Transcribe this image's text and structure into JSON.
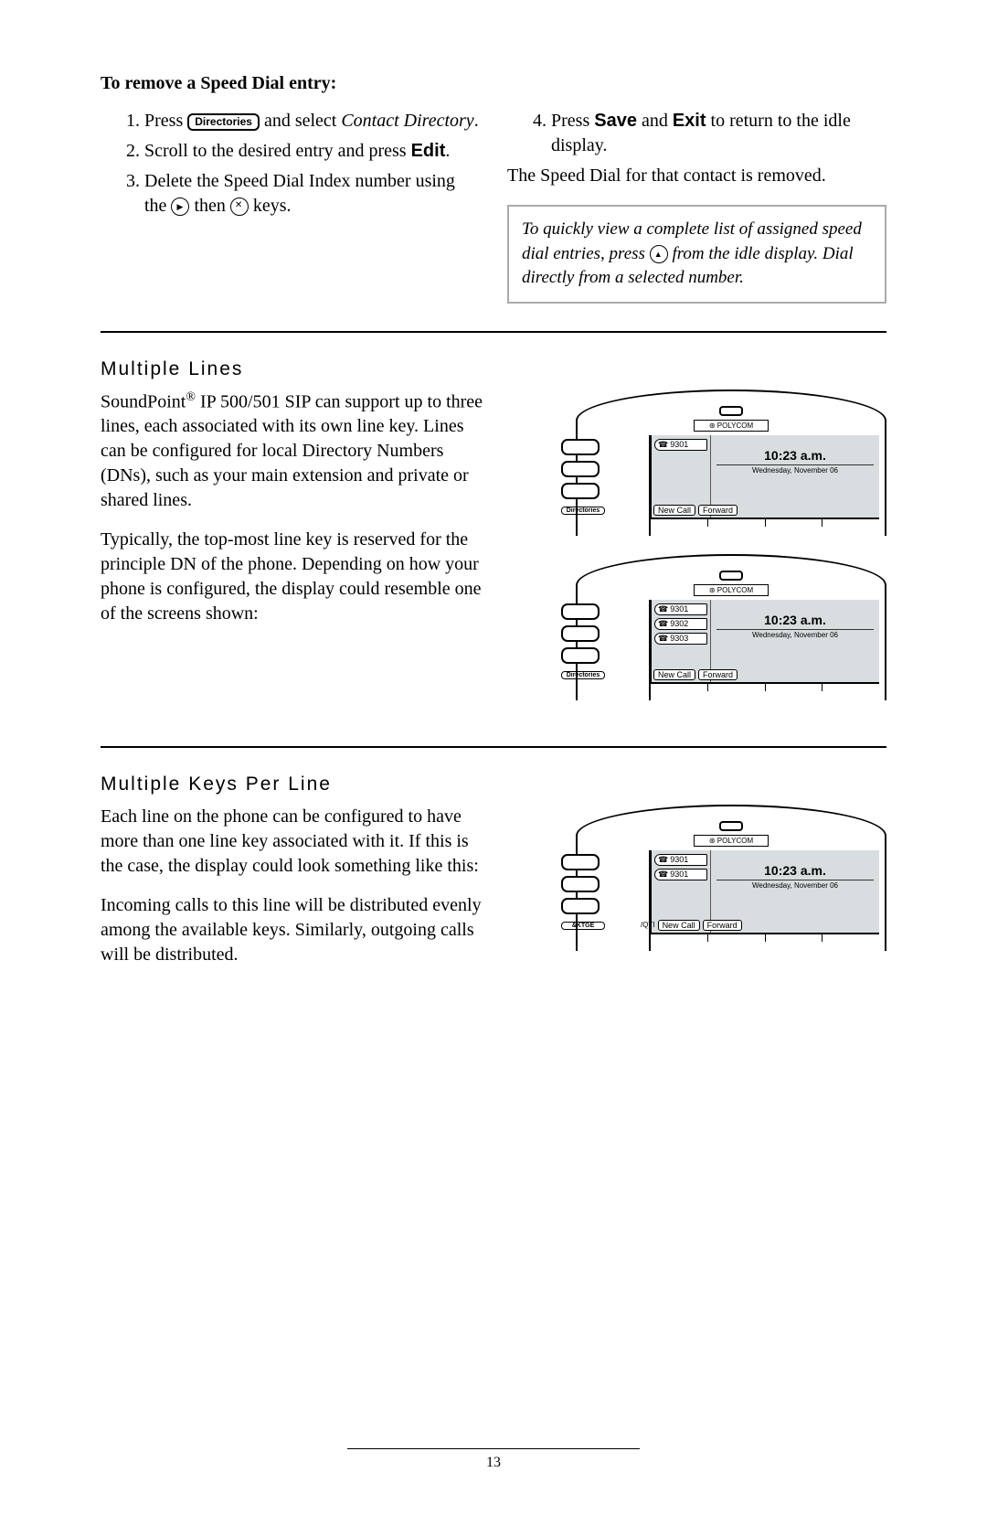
{
  "remove_heading": "To remove a Speed Dial entry:",
  "steps_left": {
    "s1_a": "Press",
    "s1_btn": "Directories",
    "s1_b": "and select",
    "s1_c": "Contact Directory",
    "s2_a": "Scroll to the desired entry and press",
    "s2_b": "Edit",
    "s3_a": "Delete the Speed Dial Index number using the",
    "s3_b": "then",
    "s3_c": "keys."
  },
  "steps_right": {
    "s4_a": "Press",
    "s4_b": "Save",
    "s4_c": "and",
    "s4_d": "Exit",
    "s4_e": "to return to the idle display."
  },
  "removed_text": "The Speed Dial for that contact is removed.",
  "tip_a": "To quickly view a complete list of assigned speed dial entries, press",
  "tip_b": "from the idle display.  Dial directly from a selected number.",
  "ml_heading": "Multiple Lines",
  "ml_p1_a": "SoundPoint",
  "ml_p1_b": " IP 500/501 SIP can support up to three lines, each associated with its own line key.  Lines can be configured for local Directory Numbers (DNs), such as your main extension and private or shared lines.",
  "ml_p2": "Typically, the top-most line key is reserved for the principle DN of the phone.  Depending on how your phone is configured, the display could resemble one of the screens shown:",
  "mk_heading": "Multiple Keys Per Line",
  "mk_p1": "Each line on the phone can be configured to have more than one line key associated with it.  If this is the case, the display could look something like this:",
  "mk_p2": "Incoming calls to this line will be distributed evenly among the available keys.  Similarly, outgoing calls will be distributed.",
  "phone": {
    "logo": "⊛ POLYCOM",
    "time": "10:23 a.m.",
    "date": "Wednesday, November 06",
    "line1": "9301",
    "line2": "9302",
    "line3": "9303",
    "sk1": "New Call",
    "sk2": "Forward",
    "dir": "Directories",
    "bktge": "&KTGE"
  },
  "page_num": "13"
}
